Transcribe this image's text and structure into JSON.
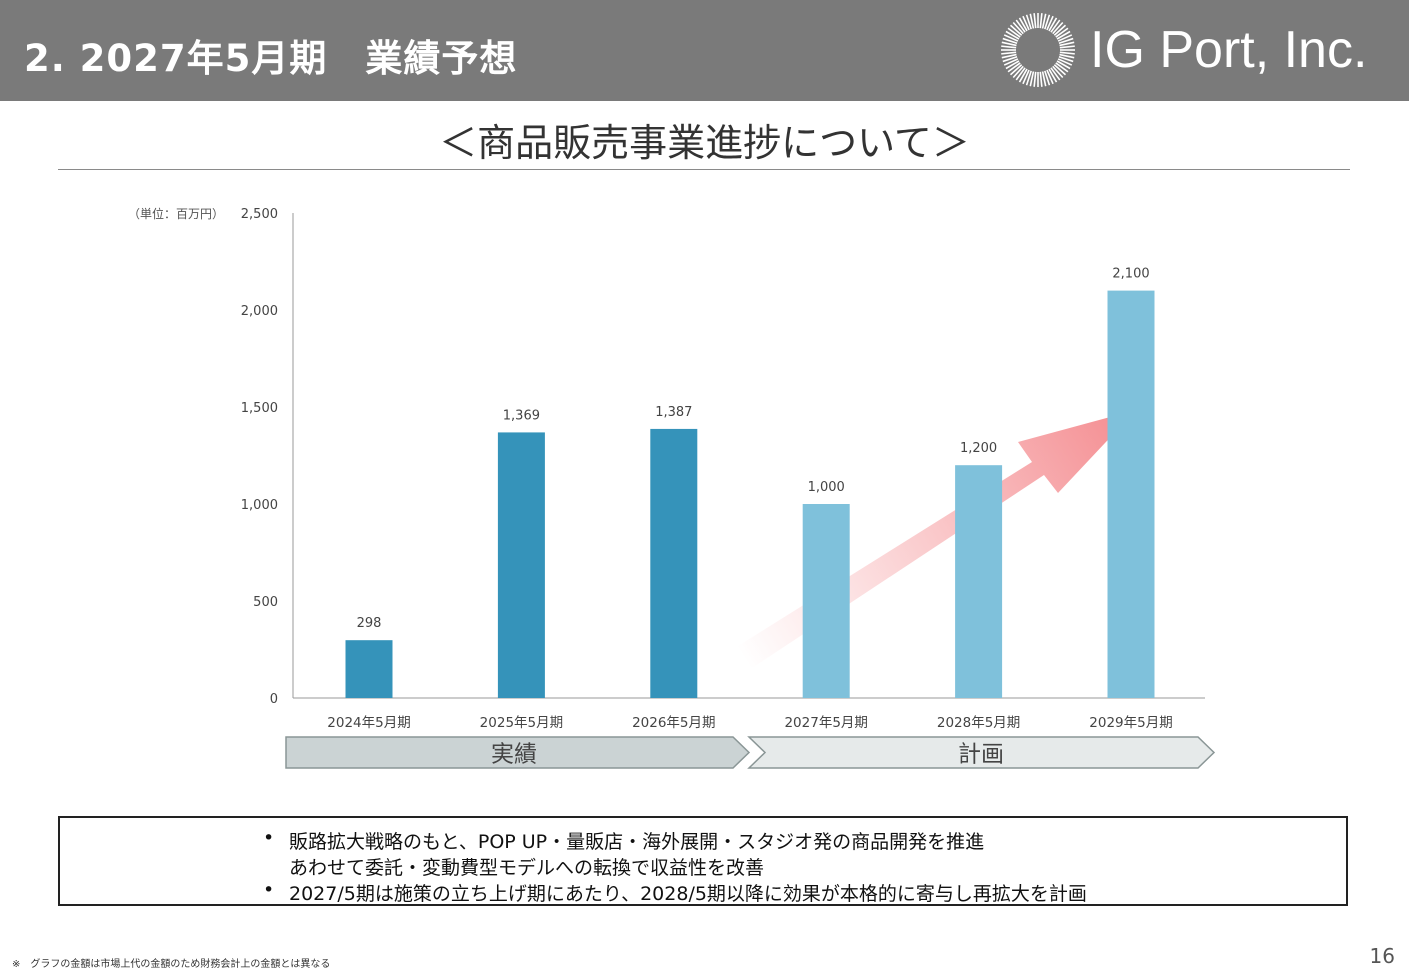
{
  "header": {
    "title": "2. 2027年5月期　業績予想",
    "company": "IG Port, Inc."
  },
  "section_title": "＜商品販売事業進捗について＞",
  "chart_data": {
    "type": "bar",
    "unit_label": "（単位：百万円）",
    "categories": [
      "2024年5月期",
      "2025年5月期",
      "2026年5月期",
      "2027年5月期",
      "2028年5月期",
      "2029年5月期"
    ],
    "values": [
      298,
      1369,
      1387,
      1000,
      1200,
      2100
    ],
    "data_labels": [
      "298",
      "1,369",
      "1,387",
      "1,000",
      "1,200",
      "2,100"
    ],
    "ylim": [
      0,
      2500
    ],
    "yticks": [
      0,
      500,
      1000,
      1500,
      2000,
      2500
    ],
    "ytick_labels": [
      "0",
      "500",
      "1,000",
      "1,500",
      "2,000",
      "2,500"
    ],
    "bar_colors": [
      "#3593ba",
      "#3593ba",
      "#3593ba",
      "#7fc1db",
      "#7fc1db",
      "#7fc1db"
    ],
    "grid": false,
    "phases": [
      {
        "label": "実績",
        "color": "#cbd3d4"
      },
      {
        "label": "計画",
        "color": "#e6eaea"
      }
    ],
    "trend_arrow_color": "#f48b8f"
  },
  "summary": {
    "bullets": [
      {
        "line1": "販路拡大戦略のもと、POP UP・量販店・海外展開・スタジオ発の商品開発を推進",
        "line2": "あわせて委託・変動費型モデルへの転換で収益性を改善"
      },
      {
        "line1": "2027/5期は施策の立ち上げ期にあたり、2028/5期以降に効果が本格的に寄与し再拡大を計画"
      }
    ],
    "bullet_symbol": "•"
  },
  "footnote": "※　グラフの金額は市場上代の金額のため財務会計上の金額とは異なる",
  "page_number": "16"
}
